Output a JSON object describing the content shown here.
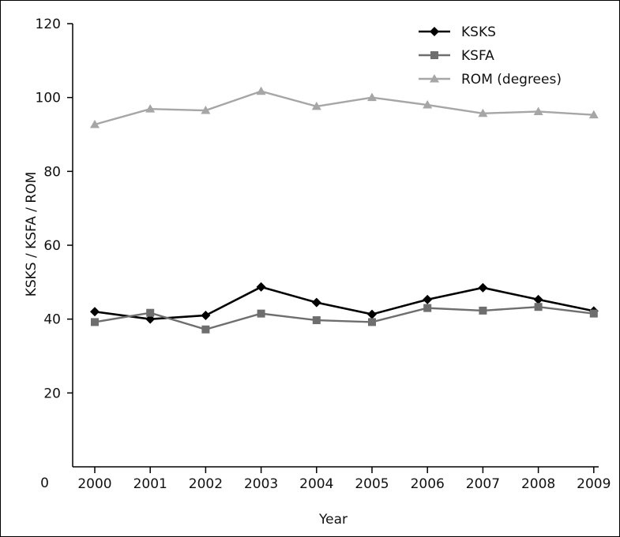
{
  "chart_data": {
    "type": "line",
    "title": "",
    "xlabel": "Year",
    "ylabel": "KSKS / KSFA / ROM",
    "ylim": [
      0,
      120
    ],
    "yticks": [
      0,
      20,
      40,
      60,
      80,
      100,
      120
    ],
    "categories": [
      "2000",
      "2001",
      "2002",
      "2003",
      "2004",
      "2005",
      "2006",
      "2007",
      "2008",
      "2009"
    ],
    "grid": false,
    "legend_position": "top-right",
    "series": [
      {
        "name": "KSKS",
        "color": "#000000",
        "marker": "diamond",
        "values": [
          42.0,
          40.0,
          41.0,
          48.7,
          44.5,
          41.3,
          45.3,
          48.5,
          45.3,
          42.2
        ]
      },
      {
        "name": "KSFA",
        "color": "#6e6e6e",
        "marker": "square",
        "values": [
          39.2,
          41.7,
          37.2,
          41.5,
          39.7,
          39.2,
          43.0,
          42.3,
          43.3,
          41.5
        ]
      },
      {
        "name": "ROM (degrees)",
        "color": "#a6a6a6",
        "marker": "triangle",
        "values": [
          92.7,
          96.9,
          96.5,
          101.7,
          97.6,
          100.0,
          98.0,
          95.7,
          96.2,
          95.3
        ]
      }
    ]
  }
}
